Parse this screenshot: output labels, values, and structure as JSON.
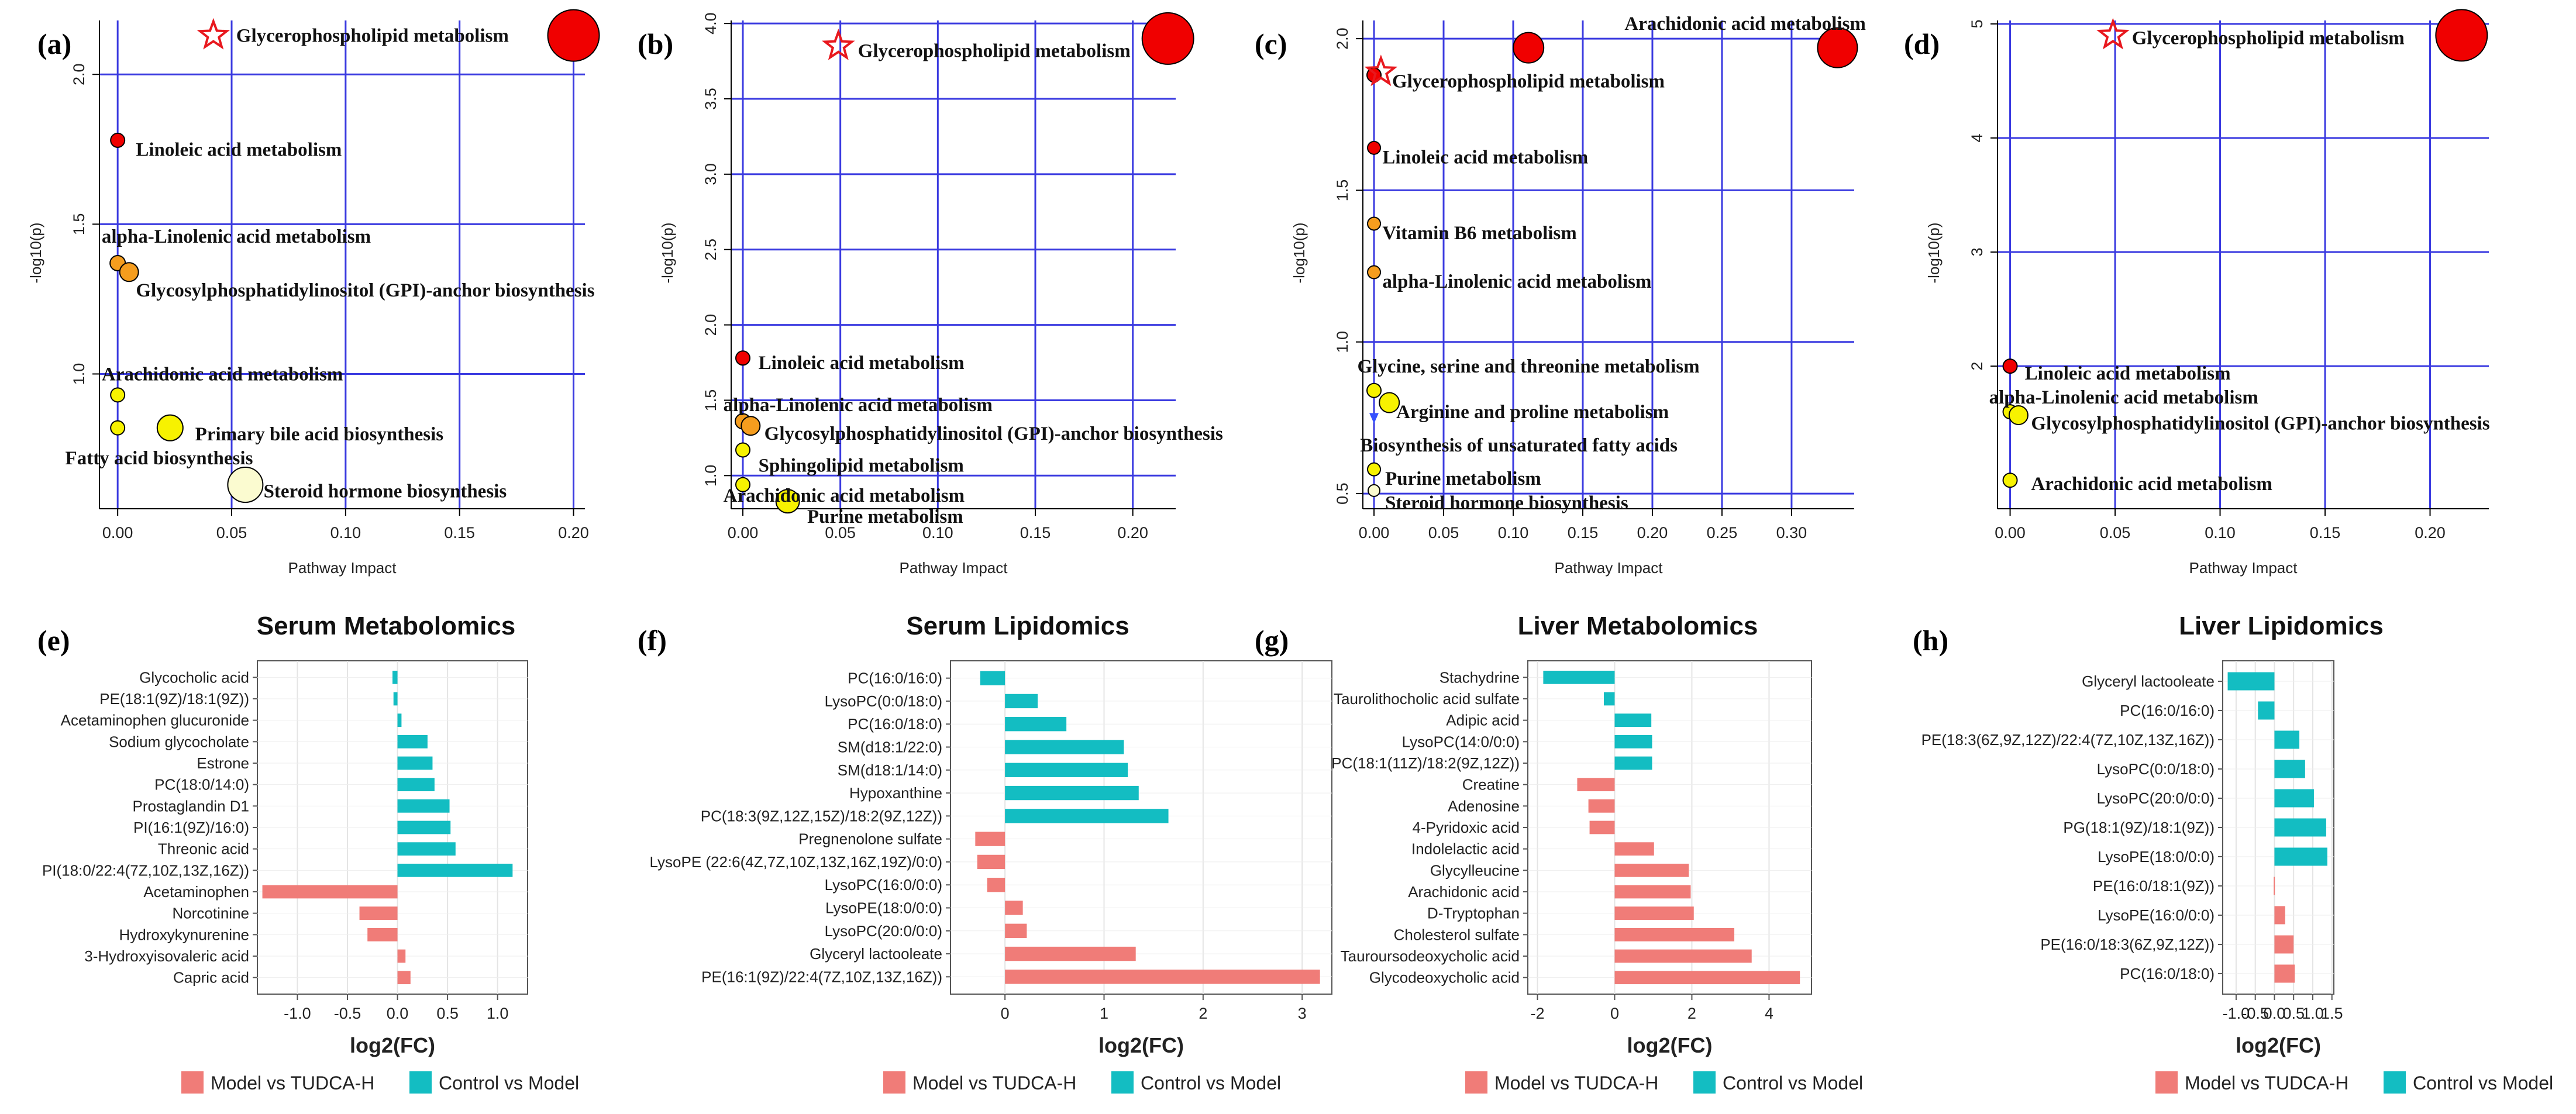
{
  "colors": {
    "grid": "#3a3ae0",
    "model": "#f07c78",
    "control": "#13bdc2",
    "star": "#e8181e",
    "bubble_red": "#f00000",
    "bubble_orange": "#f59d1e",
    "bubble_yellow": "#f7f200",
    "bubble_pale": "#fbfbd0"
  },
  "chart_data": [
    {
      "id": "a",
      "panel_label": "(a)",
      "type": "scatter",
      "xlabel": "Pathway Impact",
      "ylabel": "-log10(p)",
      "xlim": [
        -0.008,
        0.205
      ],
      "ylim": [
        0.55,
        2.18
      ],
      "xticks": [
        0.0,
        0.05,
        0.1,
        0.15,
        0.2
      ],
      "xtick_labels": [
        "0.00",
        "0.05",
        "0.10",
        "0.15",
        "0.20"
      ],
      "yticks": [
        1.0,
        1.5,
        2.0
      ],
      "ytick_labels": [
        "1.0",
        "1.5",
        "2.0"
      ],
      "star": {
        "x": 0.042,
        "y": 2.13
      },
      "points": [
        {
          "x": 0.2,
          "y": 2.13,
          "r": 44,
          "color": "red",
          "label": "Glycerophospholipid  metabolism",
          "lx": 0.052,
          "ly": 2.13
        },
        {
          "x": 0.0,
          "y": 1.78,
          "r": 12,
          "color": "red",
          "label": "Linoleic acid metabolism",
          "lx": 0.008,
          "ly": 1.75
        },
        {
          "x": 0.0,
          "y": 1.37,
          "r": 13,
          "color": "orange",
          "label": "alpha-Linolenic acid metabolism",
          "lx": -0.007,
          "ly": 1.46
        },
        {
          "x": 0.005,
          "y": 1.34,
          "r": 16,
          "color": "orange",
          "label": "Glycosylphosphatidylinositol (GPI)-anchor biosynthesis",
          "lx": 0.008,
          "ly": 1.28
        },
        {
          "x": 0.0,
          "y": 0.93,
          "r": 12,
          "color": "yellow",
          "label": "Arachidonic acid metabolism",
          "lx": -0.007,
          "ly": 1.0
        },
        {
          "x": 0.0,
          "y": 0.82,
          "r": 12,
          "color": "yellow",
          "label": "Fatty acid biosynthesis",
          "lx": -0.023,
          "ly": 0.72
        },
        {
          "x": 0.023,
          "y": 0.82,
          "r": 22,
          "color": "yellow",
          "label": "Primary bile acid biosynthesis",
          "lx": 0.034,
          "ly": 0.8
        },
        {
          "x": 0.056,
          "y": 0.63,
          "r": 30,
          "color": "pale",
          "label": "Steroid hormone biosynthesis",
          "lx": 0.064,
          "ly": 0.61
        }
      ]
    },
    {
      "id": "b",
      "panel_label": "(b)",
      "type": "scatter",
      "xlabel": "Pathway Impact",
      "ylabel": "-log10(p)",
      "xlim": [
        -0.006,
        0.222
      ],
      "ylim": [
        0.78,
        4.02
      ],
      "xticks": [
        0.0,
        0.05,
        0.1,
        0.15,
        0.2
      ],
      "xtick_labels": [
        "0.00",
        "0.05",
        "0.10",
        "0.15",
        "0.20"
      ],
      "yticks": [
        1.0,
        1.5,
        2.0,
        2.5,
        3.0,
        3.5,
        4.0
      ],
      "ytick_labels": [
        "1.0",
        "1.5",
        "2.0",
        "2.5",
        "3.0",
        "3.5",
        "4.0"
      ],
      "star": {
        "x": 0.049,
        "y": 3.85
      },
      "points": [
        {
          "x": 0.218,
          "y": 3.9,
          "r": 44,
          "color": "red",
          "label": "Glycerophospholipid  metabolism",
          "lx": 0.059,
          "ly": 3.82
        },
        {
          "x": 0.0,
          "y": 1.78,
          "r": 12,
          "color": "red",
          "label": "Linoleic acid metabolism",
          "lx": 0.008,
          "ly": 1.75
        },
        {
          "x": 0.0,
          "y": 1.36,
          "r": 13,
          "color": "orange",
          "label": "alpha-Linolenic acid metabolism",
          "lx": -0.01,
          "ly": 1.47
        },
        {
          "x": 0.004,
          "y": 1.33,
          "r": 16,
          "color": "orange",
          "label": "Glycosylphosphatidylinositol (GPI)-anchor biosynthesis",
          "lx": 0.011,
          "ly": 1.28
        },
        {
          "x": 0.0,
          "y": 1.17,
          "r": 12,
          "color": "yellow",
          "label": "Sphingolipid metabolism",
          "lx": 0.008,
          "ly": 1.07
        },
        {
          "x": 0.0,
          "y": 0.94,
          "r": 12,
          "color": "yellow",
          "label": "Arachidonic acid metabolism",
          "lx": -0.01,
          "ly": 0.87
        },
        {
          "x": 0.023,
          "y": 0.83,
          "r": 20,
          "color": "yellow",
          "label": "Purine metabolism",
          "lx": 0.033,
          "ly": 0.73
        }
      ]
    },
    {
      "id": "c",
      "panel_label": "(c)",
      "type": "scatter",
      "xlabel": "Pathway Impact",
      "ylabel": "-log10(p)",
      "xlim": [
        -0.008,
        0.345
      ],
      "ylim": [
        0.45,
        2.06
      ],
      "xticks": [
        0.0,
        0.05,
        0.1,
        0.15,
        0.2,
        0.25,
        0.3
      ],
      "xtick_labels": [
        "0.00",
        "0.05",
        "0.10",
        "0.15",
        "0.20",
        "0.25",
        "0.30"
      ],
      "yticks": [
        0.5,
        1.0,
        1.5,
        2.0
      ],
      "ytick_labels": [
        "0.5",
        "1.0",
        "1.5",
        "2.0"
      ],
      "star": {
        "x": 0.005,
        "y": 1.89
      },
      "points": [
        {
          "x": 0.111,
          "y": 1.97,
          "r": 26,
          "color": "red",
          "label": "",
          "lx": 0,
          "ly": 0
        },
        {
          "x": 0.333,
          "y": 1.97,
          "r": 34,
          "color": "red",
          "label": "Arachidonic acid metabolism",
          "lx": 0.18,
          "ly": 2.05
        },
        {
          "x": 0.0,
          "y": 1.88,
          "r": 12,
          "color": "red",
          "label": "Glycerophospholipid metabolism",
          "lx": 0.013,
          "ly": 1.86
        },
        {
          "x": 0.0,
          "y": 1.64,
          "r": 11,
          "color": "red",
          "label": "Linoleic acid metabolism",
          "lx": 0.006,
          "ly": 1.61
        },
        {
          "x": 0.0,
          "y": 1.39,
          "r": 11,
          "color": "orange",
          "label": "Vitamin B6 metabolism",
          "lx": 0.006,
          "ly": 1.36
        },
        {
          "x": 0.0,
          "y": 1.23,
          "r": 11,
          "color": "orange",
          "label": "alpha-Linolenic acid metabolism",
          "lx": 0.006,
          "ly": 1.2
        },
        {
          "x": 0.0,
          "y": 0.84,
          "r": 12,
          "color": "yellow",
          "label": "Glycine, serine and threonine metabolism",
          "lx": -0.012,
          "ly": 0.92
        },
        {
          "x": 0.011,
          "y": 0.8,
          "r": 17,
          "color": "yellow",
          "label": "Arginine and proline metabolism",
          "lx": 0.016,
          "ly": 0.77
        },
        {
          "x": 0.0,
          "y": 0.75,
          "r": 9,
          "color": "blue",
          "label": "Biosynthesis of unsaturated fatty acids",
          "lx": -0.01,
          "ly": 0.66
        },
        {
          "x": 0.0,
          "y": 0.58,
          "r": 11,
          "color": "yellow",
          "label": "Purine metabolism",
          "lx": 0.008,
          "ly": 0.55
        },
        {
          "x": 0.0,
          "y": 0.51,
          "r": 10,
          "color": "pale",
          "label": "Steroid hormone biosynthesis",
          "lx": 0.008,
          "ly": 0.47
        }
      ]
    },
    {
      "id": "d",
      "panel_label": "(d)",
      "type": "scatter",
      "xlabel": "Pathway Impact",
      "ylabel": "-log10(p)",
      "xlim": [
        -0.006,
        0.228
      ],
      "ylim": [
        0.75,
        5.03
      ],
      "xticks": [
        0.0,
        0.05,
        0.1,
        0.15,
        0.2
      ],
      "xtick_labels": [
        "0.00",
        "0.05",
        "0.10",
        "0.15",
        "0.20"
      ],
      "yticks": [
        2,
        3,
        4,
        5
      ],
      "ytick_labels": [
        "2",
        "3",
        "4",
        "5"
      ],
      "star": {
        "x": 0.049,
        "y": 4.9
      },
      "points": [
        {
          "x": 0.215,
          "y": 4.9,
          "r": 44,
          "color": "red",
          "label": "Glycerophospholipid  metabolism",
          "lx": 0.058,
          "ly": 4.88
        },
        {
          "x": 0.0,
          "y": 2.0,
          "r": 12,
          "color": "red",
          "label": "Linoleic acid metabolism",
          "lx": 0.007,
          "ly": 1.94
        },
        {
          "x": 0.0,
          "y": 1.6,
          "r": 12,
          "color": "yellow",
          "label": "alpha-Linolenic acid metabolism",
          "lx": -0.01,
          "ly": 1.73
        },
        {
          "x": 0.004,
          "y": 1.57,
          "r": 16,
          "color": "yellow",
          "label": "Glycosylphosphatidylinositol (GPI)-anchor biosynthesis",
          "lx": 0.01,
          "ly": 1.5
        },
        {
          "x": 0.0,
          "y": 1.0,
          "r": 12,
          "color": "yellow",
          "label": "Arachidonic acid metabolism",
          "lx": 0.01,
          "ly": 0.97
        }
      ]
    },
    {
      "id": "e",
      "panel_label": "(e)",
      "type": "bar",
      "title": "Serum Metabolomics",
      "xlabel": "log2(FC)",
      "xlim": [
        -1.4,
        1.3
      ],
      "xticks": [
        -1.0,
        -0.5,
        0.0,
        0.5,
        1.0
      ],
      "xtick_labels": [
        "-1.0",
        "-0.5",
        "0.0",
        "0.5",
        "1.0"
      ],
      "categories": [
        "Glycocholic acid",
        "PE(18:1(9Z)/18:1(9Z))",
        "Acetaminophen glucuronide",
        "Sodium glycocholate",
        "Estrone",
        "PC(18:0/14:0)",
        "Prostaglandin D1",
        "PI(16:1(9Z)/16:0)",
        "Threonic acid",
        "PI(18:0/22:4(7Z,10Z,13Z,16Z))",
        "Acetaminophen",
        "Norcotinine",
        "Hydroxykynurenine",
        "3-Hydroxyisovaleric acid",
        "Capric acid"
      ],
      "values": [
        -0.05,
        -0.04,
        0.04,
        0.3,
        0.35,
        0.37,
        0.52,
        0.53,
        0.58,
        1.15,
        -1.35,
        -0.38,
        -0.3,
        0.08,
        0.13
      ],
      "groups": [
        "control",
        "control",
        "control",
        "control",
        "control",
        "control",
        "control",
        "control",
        "control",
        "control",
        "model",
        "model",
        "model",
        "model",
        "model"
      ],
      "legend": [
        "Model vs TUDCA-H",
        "Control vs Model"
      ]
    },
    {
      "id": "f",
      "panel_label": "(f)",
      "type": "bar",
      "title": "Serum Lipidomics",
      "xlabel": "log2(FC)",
      "xlim": [
        -0.55,
        3.3
      ],
      "xticks": [
        0,
        1,
        2,
        3
      ],
      "xtick_labels": [
        "0",
        "1",
        "2",
        "3"
      ],
      "categories": [
        "PC(16:0/16:0)",
        "LysoPC(0:0/18:0)",
        "PC(16:0/18:0)",
        "SM(d18:1/22:0)",
        "SM(d18:1/14:0)",
        "Hypoxanthine",
        "PC(18:3(9Z,12Z,15Z)/18:2(9Z,12Z))",
        "Pregnenolone sulfate",
        "LysoPE (22:6(4Z,7Z,10Z,13Z,16Z,19Z)/0:0)",
        "LysoPC(16:0/0:0)",
        "LysoPE(18:0/0:0)",
        "LysoPC(20:0/0:0)",
        "Glyceryl lactooleate",
        "PE(16:1(9Z)/22:4(7Z,10Z,13Z,16Z))"
      ],
      "values": [
        -0.25,
        0.33,
        0.62,
        1.2,
        1.24,
        1.35,
        1.65,
        -0.3,
        -0.28,
        -0.18,
        0.18,
        0.22,
        1.32,
        3.18
      ],
      "groups": [
        "control",
        "control",
        "control",
        "control",
        "control",
        "control",
        "control",
        "model",
        "model",
        "model",
        "model",
        "model",
        "model",
        "model"
      ],
      "legend": [
        "Model vs TUDCA-H",
        "Control vs Model"
      ]
    },
    {
      "id": "g",
      "panel_label": "(g)",
      "type": "bar",
      "title": "Liver Metabolomics",
      "xlabel": "log2(FC)",
      "xlim": [
        -2.25,
        5.1
      ],
      "xticks": [
        -2,
        0,
        2,
        4
      ],
      "xtick_labels": [
        "-2",
        "0",
        "2",
        "4"
      ],
      "categories": [
        "Stachydrine",
        "Taurolithocholic acid sulfate",
        "Adipic acid",
        "LysoPC(14:0/0:0)",
        "PC(18:1(11Z)/18:2(9Z,12Z))",
        "Creatine",
        "Adenosine",
        "4-Pyridoxic acid",
        "Indolelactic acid",
        "Glycylleucine",
        "Arachidonic acid",
        "D-Tryptophan",
        "Cholesterol sulfate",
        "Tauroursodeoxycholic acid",
        "Glycodeoxycholic acid"
      ],
      "values": [
        -1.85,
        -0.28,
        0.95,
        0.97,
        0.97,
        -0.97,
        -0.68,
        -0.65,
        1.02,
        1.92,
        1.97,
        2.05,
        3.1,
        3.55,
        4.8
      ],
      "groups": [
        "control",
        "control",
        "control",
        "control",
        "control",
        "model",
        "model",
        "model",
        "model",
        "model",
        "model",
        "model",
        "model",
        "model",
        "model"
      ],
      "legend": [
        "Model vs TUDCA-H",
        "Control vs Model"
      ]
    },
    {
      "id": "h",
      "panel_label": "(h)",
      "type": "bar",
      "title": "Liver Lipidomics",
      "xlabel": "log2(FC)",
      "xlim": [
        -1.35,
        1.55
      ],
      "xticks": [
        -1.0,
        -0.5,
        0.0,
        0.5,
        1.0,
        1.5
      ],
      "xtick_labels": [
        "-1.0",
        "-0.5",
        "0.0",
        "0.5",
        "1.0",
        "1.5"
      ],
      "categories": [
        "Glyceryl lactooleate",
        "PC(16:0/16:0)",
        "PE(18:3(6Z,9Z,12Z)/22:4(7Z,10Z,13Z,16Z))",
        "LysoPC(0:0/18:0)",
        "LysoPC(20:0/0:0)",
        "PG(18:1(9Z)/18:1(9Z))",
        "LysoPE(18:0/0:0)",
        "PE(16:0/18:1(9Z))",
        "LysoPE(16:0/0:0)",
        "PE(16:0/18:3(6Z,9Z,12Z))",
        "PC(16:0/18:0)"
      ],
      "values": [
        -1.22,
        -0.43,
        0.65,
        0.8,
        1.03,
        1.35,
        1.38,
        -0.02,
        0.28,
        0.5,
        0.53
      ],
      "groups": [
        "control",
        "control",
        "control",
        "control",
        "control",
        "control",
        "control",
        "model",
        "model",
        "model",
        "model"
      ],
      "legend": [
        "Model vs TUDCA-H",
        "Control vs Model"
      ]
    }
  ]
}
